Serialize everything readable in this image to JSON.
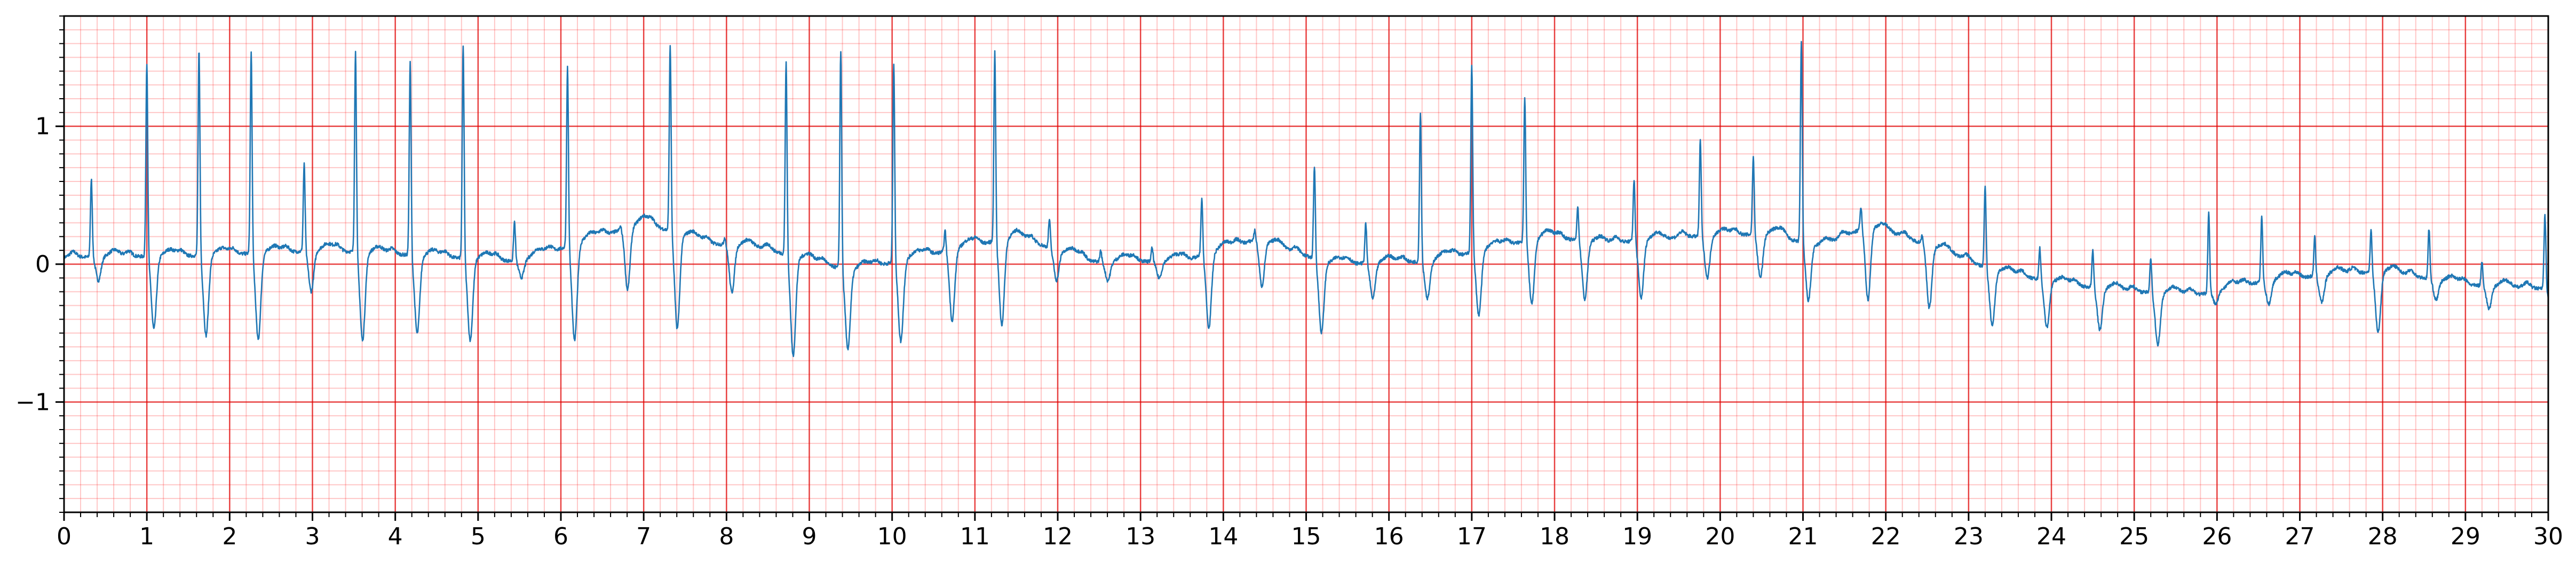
{
  "chart_data": {
    "type": "line",
    "title": "",
    "xlabel": "",
    "ylabel": "",
    "xlim": [
      0,
      30
    ],
    "ylim": [
      -1.8,
      1.8
    ],
    "x_ticks": [
      0,
      1,
      2,
      3,
      4,
      5,
      6,
      7,
      8,
      9,
      10,
      11,
      12,
      13,
      14,
      15,
      16,
      17,
      18,
      19,
      20,
      21,
      22,
      23,
      24,
      25,
      26,
      27,
      28,
      29,
      30
    ],
    "x_tick_labels": [
      "0",
      "1",
      "2",
      "3",
      "4",
      "5",
      "6",
      "7",
      "8",
      "9",
      "10",
      "11",
      "12",
      "13",
      "14",
      "15",
      "16",
      "17",
      "18",
      "19",
      "20",
      "21",
      "22",
      "23",
      "24",
      "25",
      "26",
      "27",
      "28",
      "29",
      "30"
    ],
    "y_ticks": [
      -1,
      0,
      1
    ],
    "y_tick_labels": [
      "−1",
      "0",
      "1"
    ],
    "grid": {
      "major": true,
      "minor": true,
      "major_color": "#e00000",
      "minor_color": "#ff9999",
      "minor_x_step": 0.2,
      "minor_y_step": 0.1
    },
    "legend": "none",
    "series": [
      {
        "color": "#1f77b4",
        "beat_times": [
          0.33,
          1.0,
          1.63,
          2.26,
          2.9,
          3.52,
          4.18,
          4.82,
          5.44,
          6.08,
          6.72,
          7.32,
          7.98,
          8.72,
          9.38,
          10.02,
          10.64,
          11.24,
          11.9,
          12.52,
          13.14,
          13.74,
          14.38,
          15.1,
          15.72,
          16.38,
          17.0,
          17.64,
          18.28,
          18.96,
          19.76,
          20.4,
          20.98,
          21.7,
          22.44,
          23.2,
          23.86,
          24.5,
          25.2,
          25.9,
          26.54,
          27.18,
          27.86,
          28.56,
          29.2,
          29.96
        ],
        "beat_peaks": [
          0.62,
          1.47,
          1.56,
          1.55,
          0.73,
          1.55,
          1.47,
          1.6,
          0.31,
          1.44,
          0.28,
          1.6,
          0.2,
          1.47,
          1.56,
          1.47,
          0.25,
          1.55,
          0.33,
          0.1,
          0.12,
          0.48,
          0.25,
          0.72,
          0.3,
          1.1,
          1.46,
          1.22,
          0.42,
          0.62,
          0.9,
          0.78,
          1.62,
          0.42,
          0.22,
          0.57,
          0.12,
          0.1,
          0.05,
          0.38,
          0.35,
          0.2,
          0.25,
          0.26,
          0.02,
          0.36
        ],
        "beat_troughs": [
          -0.12,
          -0.47,
          -0.52,
          -0.55,
          -0.2,
          -0.55,
          -0.5,
          -0.55,
          -0.1,
          -0.57,
          -0.2,
          -0.45,
          -0.2,
          -0.65,
          -0.6,
          -0.57,
          -0.42,
          -0.45,
          -0.1,
          -0.12,
          -0.1,
          -0.48,
          -0.15,
          -0.48,
          -0.25,
          -0.25,
          -0.38,
          -0.3,
          -0.25,
          -0.25,
          -0.1,
          -0.1,
          -0.25,
          -0.28,
          -0.3,
          -0.42,
          -0.45,
          -0.47,
          -0.58,
          -0.3,
          -0.3,
          -0.28,
          -0.5,
          -0.25,
          -0.32,
          -0.4
        ],
        "baseline": [
          [
            0,
            0.05
          ],
          [
            1.5,
            0.06
          ],
          [
            3.2,
            0.1
          ],
          [
            5.5,
            0.02
          ],
          [
            7.0,
            0.3
          ],
          [
            7.8,
            0.15
          ],
          [
            8.4,
            0.12
          ],
          [
            9.5,
            -0.05
          ],
          [
            11.5,
            0.2
          ],
          [
            12.4,
            0.02
          ],
          [
            13.5,
            0.02
          ],
          [
            14.4,
            0.18
          ],
          [
            15.3,
            0.0
          ],
          [
            16.5,
            0.02
          ],
          [
            17.9,
            0.2
          ],
          [
            18.6,
            0.15
          ],
          [
            19.6,
            0.2
          ],
          [
            20.6,
            0.22
          ],
          [
            21.2,
            0.12
          ],
          [
            21.8,
            0.28
          ],
          [
            22.7,
            0.1
          ],
          [
            23.3,
            -0.05
          ],
          [
            24.2,
            -0.15
          ],
          [
            25.0,
            -0.2
          ],
          [
            25.8,
            -0.22
          ],
          [
            26.6,
            -0.12
          ],
          [
            27.3,
            -0.08
          ],
          [
            28.0,
            -0.05
          ],
          [
            29.0,
            -0.15
          ],
          [
            30,
            -0.18
          ]
        ]
      }
    ]
  }
}
